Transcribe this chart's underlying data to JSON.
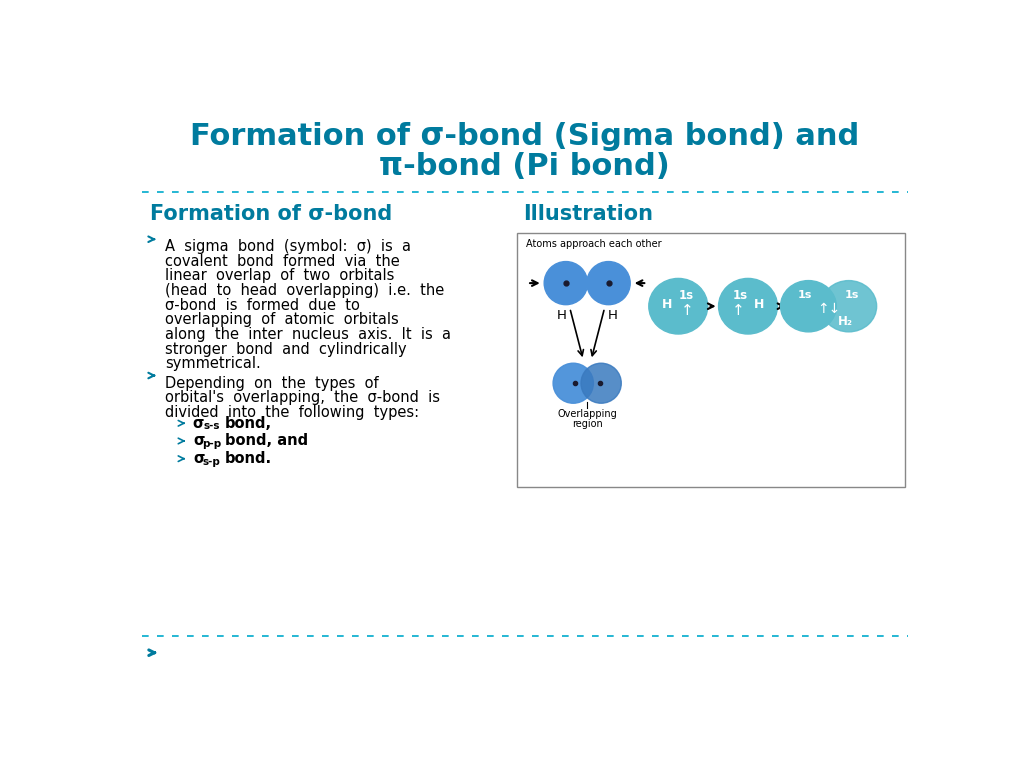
{
  "title_line1": "Formation of σ-bond (Sigma bond) and",
  "title_line2": "π-bond (Pi bond)",
  "title_color": "#007B9E",
  "title_fontsize": 22,
  "bg_color": "#FFFFFF",
  "separator_color": "#00AACC",
  "left_heading": "Formation of σ-bond",
  "right_heading": "Illustration",
  "heading_color": "#007B9E",
  "heading_fontsize": 15,
  "bullet_color": "#007B9E",
  "text_color": "#000000",
  "text_fontsize": 10.5,
  "orbital_blue": "#4A90D9",
  "orbital_teal": "#5BBCCC",
  "bottom_arrow_color": "#007B9E"
}
